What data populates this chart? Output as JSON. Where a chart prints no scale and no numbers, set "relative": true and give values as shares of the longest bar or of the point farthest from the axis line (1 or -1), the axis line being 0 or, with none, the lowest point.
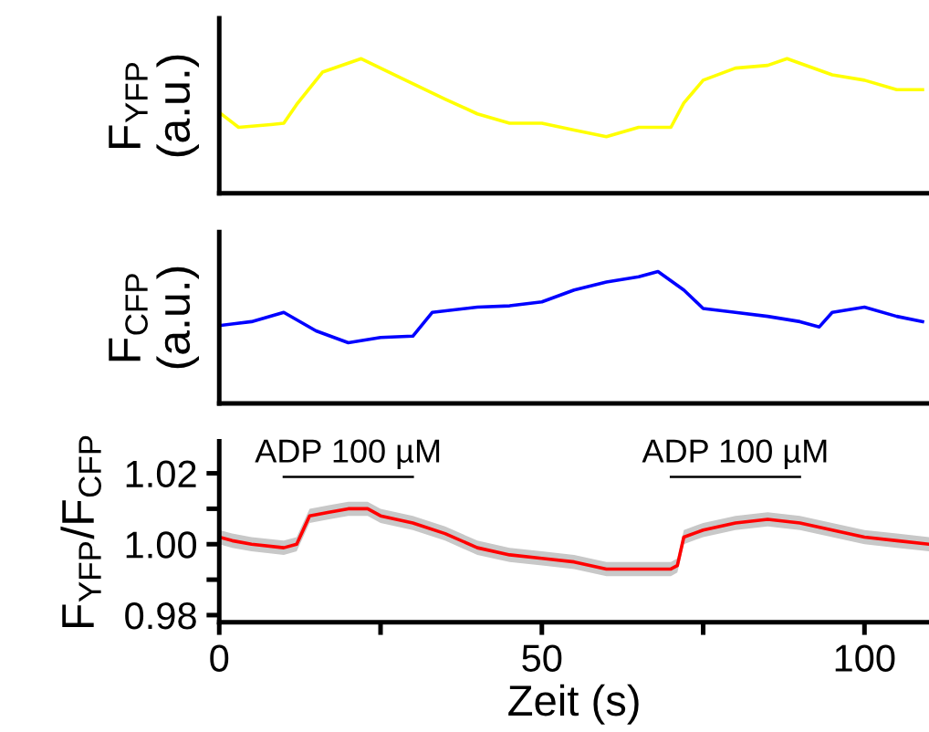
{
  "chart_data": [
    {
      "type": "line",
      "relative": true,
      "ylabel": "F$_{YFP}$\n(a.u.)",
      "xlim": [
        0,
        110
      ],
      "tick_labels": false,
      "series": [
        {
          "color": "#ffff00",
          "x": [
            0,
            3,
            8,
            10,
            12,
            16,
            22,
            28,
            35,
            40,
            45,
            50,
            55,
            60,
            65,
            70,
            72,
            75,
            80,
            85,
            88,
            95,
            100,
            105,
            109
          ],
          "values": [
            0.6,
            0.49,
            0.51,
            0.52,
            0.66,
            0.9,
            1,
            0.86,
            0.7,
            0.59,
            0.52,
            0.52,
            0.47,
            0.42,
            0.49,
            0.49,
            0.67,
            0.84,
            0.93,
            0.95,
            1,
            0.88,
            0.84,
            0.77,
            0.77
          ]
        }
      ]
    },
    {
      "type": "line",
      "relative": true,
      "ylabel": "F$_{CFP}$\n(a.u.)",
      "xlim": [
        0,
        110
      ],
      "tick_labels": false,
      "series": [
        {
          "color": "#0000ff",
          "x": [
            0,
            5,
            10,
            15,
            20,
            25,
            30,
            33,
            40,
            45,
            50,
            55,
            60,
            65,
            68,
            72,
            75,
            80,
            85,
            90,
            93,
            95,
            100,
            105,
            109
          ],
          "values": [
            0.59,
            0.62,
            0.69,
            0.55,
            0.46,
            0.5,
            0.51,
            0.69,
            0.73,
            0.74,
            0.77,
            0.86,
            0.92,
            0.96,
            1,
            0.86,
            0.72,
            0.69,
            0.66,
            0.62,
            0.58,
            0.69,
            0.73,
            0.66,
            0.62
          ]
        }
      ]
    },
    {
      "type": "line",
      "ylabel": "F$_{YFP}$/F$_{CFP}$",
      "xlabel": "Zeit (s)",
      "xlim": [
        0,
        110
      ],
      "ylim": [
        0.978,
        1.029
      ],
      "xticks": [
        0,
        {
          "value": 25,
          "label": null
        },
        50,
        {
          "value": 75,
          "label": null
        },
        100
      ],
      "yticks": [
        {
          "value": 0.98,
          "label": "0.98"
        },
        {
          "value": 0.99,
          "label": null
        },
        {
          "value": 1.0,
          "label": "1.00"
        },
        {
          "value": 1.01,
          "label": null
        },
        {
          "value": 1.02,
          "label": "1.02"
        }
      ],
      "series": [
        {
          "name": "ADP 100 µM",
          "color": "#000000",
          "x": [
            10,
            30
          ],
          "values": [
            1.019,
            1.019
          ]
        },
        {
          "name": "ADP 100 µM",
          "color": "#000000",
          "x": [
            70,
            90
          ],
          "values": [
            1.019,
            1.019
          ]
        },
        {
          "color": "#ff0000",
          "x": [
            0,
            2,
            5,
            10,
            12,
            14,
            17,
            20,
            23,
            25,
            30,
            35,
            40,
            45,
            50,
            55,
            60,
            65,
            70,
            71,
            72,
            75,
            80,
            85,
            90,
            95,
            100,
            105,
            110
          ],
          "values": [
            1.002,
            1.001,
            1.0,
            0.999,
            1.0,
            1.008,
            1.009,
            1.01,
            1.01,
            1.008,
            1.006,
            1.003,
            0.999,
            0.997,
            0.996,
            0.995,
            0.993,
            0.993,
            0.993,
            0.994,
            1.002,
            1.004,
            1.006,
            1.007,
            1.006,
            1.004,
            1.002,
            1.001,
            1.0
          ],
          "lower": [
            1.0,
            0.999,
            0.998,
            0.997,
            0.998,
            1.006,
            1.007,
            1.008,
            1.008,
            1.006,
            1.004,
            1.001,
            0.997,
            0.995,
            0.994,
            0.993,
            0.991,
            0.991,
            0.991,
            0.992,
            1.0,
            1.002,
            1.004,
            1.005,
            1.004,
            1.002,
            1.0,
            0.999,
            0.998
          ],
          "upper": [
            1.004,
            1.003,
            1.002,
            1.001,
            1.002,
            1.01,
            1.011,
            1.012,
            1.012,
            1.01,
            1.008,
            1.005,
            1.001,
            0.999,
            0.998,
            0.997,
            0.995,
            0.995,
            0.995,
            0.996,
            1.004,
            1.006,
            1.008,
            1.009,
            1.008,
            1.006,
            1.004,
            1.003,
            1.002
          ]
        }
      ]
    }
  ]
}
